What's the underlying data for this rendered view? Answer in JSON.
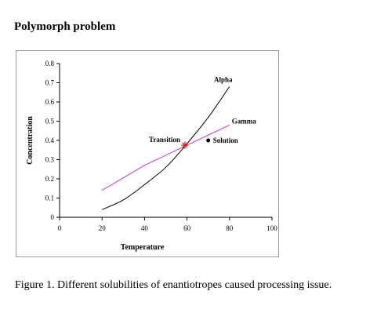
{
  "page": {
    "heading": "Polymorph problem",
    "caption": "Figure 1. Different solubilities of enantiotropes caused processing issue."
  },
  "chart_data": {
    "type": "line",
    "title": "",
    "xlabel": "Temperature",
    "ylabel": "Concentration",
    "xlim": [
      0,
      100
    ],
    "ylim": [
      0,
      0.8
    ],
    "xticks": [
      0,
      20,
      40,
      60,
      80,
      100
    ],
    "xtick_labels": [
      "0",
      "20",
      "40",
      "60",
      "80",
      "100"
    ],
    "yticks": [
      0,
      0.1,
      0.2,
      0.3,
      0.4,
      0.5,
      0.6,
      0.7,
      0.8
    ],
    "ytick_labels": [
      "0",
      "0.1",
      "0.2",
      "0.3",
      "0.4",
      "0.5",
      "0.6",
      "0.7",
      "0.8"
    ],
    "grid": false,
    "series": [
      {
        "name": "Alpha",
        "color": "#000000",
        "x": [
          20,
          30,
          40,
          50,
          59,
          70,
          80
        ],
        "y": [
          0.04,
          0.09,
          0.17,
          0.26,
          0.37,
          0.52,
          0.68
        ]
      },
      {
        "name": "Gamma",
        "color": "#cc33cc",
        "x": [
          20,
          40,
          59,
          80
        ],
        "y": [
          0.14,
          0.27,
          0.37,
          0.48
        ]
      }
    ],
    "annotations": [
      {
        "label": "Transition",
        "x": 59,
        "y": 0.375,
        "marker": "star",
        "color": "#cc2222"
      },
      {
        "label": "Solution",
        "x": 70,
        "y": 0.4,
        "marker": "circle",
        "color": "#000000"
      }
    ]
  }
}
